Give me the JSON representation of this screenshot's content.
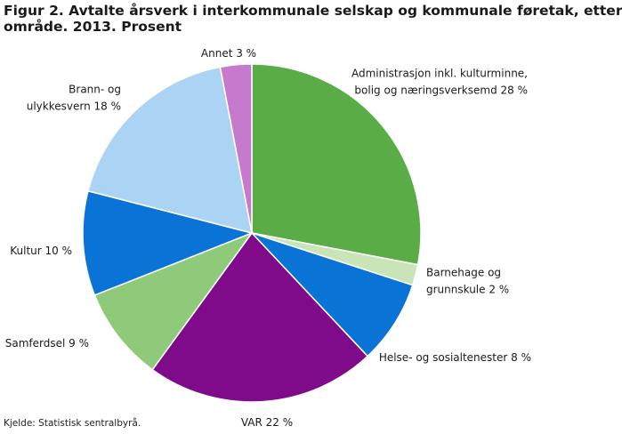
{
  "title_line1": "Figur 2. Avtalte årsverk i interkommunale selskap og kommunale føretak, etter",
  "title_line2": "område. 2013. Prosent",
  "source": "Kjelde: Statistisk sentralbyrå.",
  "chart_data": {
    "type": "pie",
    "unit": "%",
    "slices": [
      {
        "label": [
          "Administrasjon inkl. kulturminne,",
          "bolig og næringsverksemd 28 %"
        ],
        "value": 28,
        "color": "#5aad46"
      },
      {
        "label": [
          "Barnehage og",
          "grunnskule 2 %"
        ],
        "value": 2,
        "color": "#c9e5b8"
      },
      {
        "label": [
          "Helse- og sosialtenester 8 %"
        ],
        "value": 8,
        "color": "#0a74d6"
      },
      {
        "label": [
          "VAR 22 %"
        ],
        "value": 22,
        "color": "#7f0a8a"
      },
      {
        "label": [
          "Samferdsel 9 %"
        ],
        "value": 9,
        "color": "#8fc97a"
      },
      {
        "label": [
          "Kultur 10 %"
        ],
        "value": 10,
        "color": "#0a74d6"
      },
      {
        "label": [
          "Brann- og",
          "ulykkesvern 18 %"
        ],
        "value": 18,
        "color": "#abd4f4"
      },
      {
        "label": [
          "Annet 3 %"
        ],
        "value": 3,
        "color": "#c57acd"
      }
    ]
  }
}
